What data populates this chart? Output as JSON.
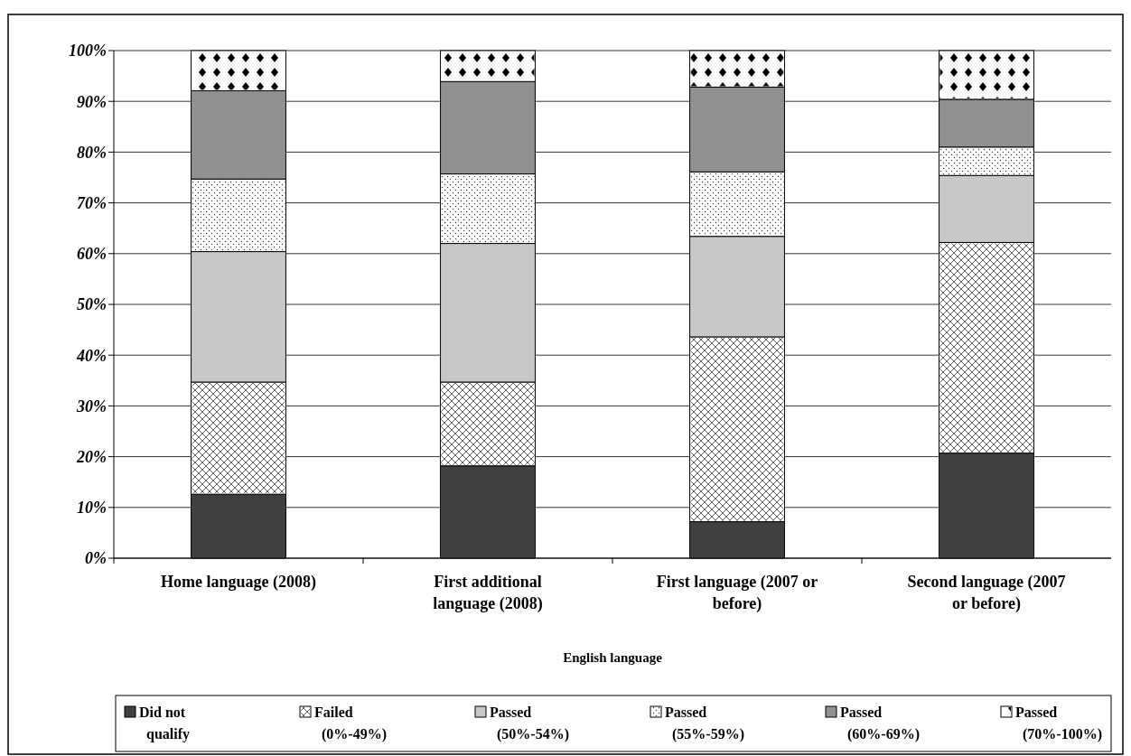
{
  "chart_data": {
    "type": "bar",
    "stacked": true,
    "xlabel": "English language",
    "categories": [
      "Home language (2008)",
      "First additional language (2008)",
      "First language (2007 or before)",
      "Second language (2007 or before)"
    ],
    "series": [
      {
        "name": "Did not qualify",
        "color": "#404040",
        "values": [
          12.6,
          18.2,
          7.2,
          20.7
        ]
      },
      {
        "name": "Failed (0%-49%)",
        "color": "#ffffff",
        "values": [
          22.1,
          16.5,
          36.4,
          41.5
        ]
      },
      {
        "name": "Passed (50%-54%)",
        "color": "#c8c8c8",
        "values": [
          25.7,
          27.3,
          19.8,
          13.2
        ]
      },
      {
        "name": "Passed (55%-59%)",
        "color": "#ffffff",
        "values": [
          14.3,
          13.7,
          12.7,
          5.6
        ]
      },
      {
        "name": "Passed (60%-69%)",
        "color": "#909090",
        "values": [
          17.4,
          18.2,
          16.7,
          9.4
        ]
      },
      {
        "name": "Passed (70%-100%)",
        "color": "#ffffff",
        "values": [
          7.9,
          6.1,
          7.2,
          9.6
        ]
      }
    ],
    "ylim": [
      0,
      100
    ],
    "yticks": [
      {
        "value": 0,
        "label": "0%"
      },
      {
        "value": 10,
        "label": "10%"
      },
      {
        "value": 20,
        "label": "20%"
      },
      {
        "value": 30,
        "label": "30%"
      },
      {
        "value": 40,
        "label": "40%"
      },
      {
        "value": 50,
        "label": "50%"
      },
      {
        "value": 60,
        "label": "60%"
      },
      {
        "value": 70,
        "label": "70%"
      },
      {
        "value": 80,
        "label": "80%"
      },
      {
        "value": 90,
        "label": "90%"
      },
      {
        "value": 100,
        "label": "100%"
      }
    ],
    "grid": "y",
    "legend": "bottom"
  }
}
